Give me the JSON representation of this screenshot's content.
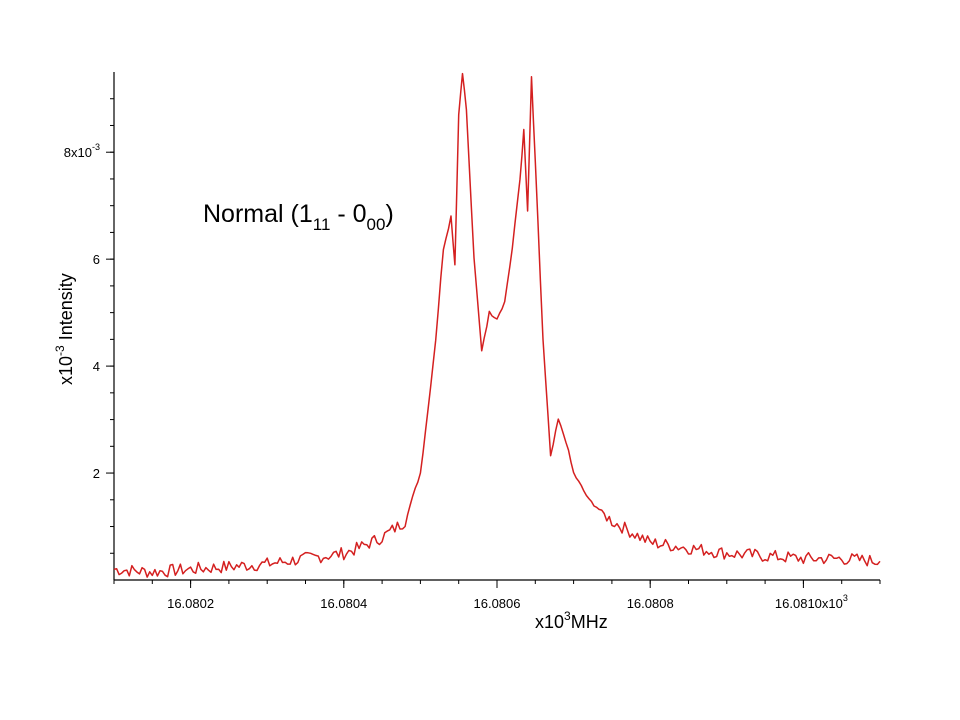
{
  "chart_data": {
    "type": "line",
    "title": "",
    "annotation": {
      "main": "Normal (1",
      "sub1": "11",
      "mid": " - 0",
      "sub2": "00",
      "end": ")"
    },
    "xlabel": {
      "prefix": "x10",
      "exp": "3",
      "unit": "MHz"
    },
    "ylabel": {
      "prefix": "x10",
      "exp": "-3",
      "unit": " Intensity"
    },
    "xlim": [
      16.0801,
      16.0811
    ],
    "ylim": [
      0,
      0.0095
    ],
    "grid": false,
    "x_ticks": [
      {
        "value": 16.0802,
        "label": "16.0802"
      },
      {
        "value": 16.0804,
        "label": "16.0804"
      },
      {
        "value": 16.0806,
        "label": "16.0806"
      },
      {
        "value": 16.0808,
        "label": "16.0808"
      },
      {
        "value": 16.081,
        "label": "16.0810x10",
        "sup": "3"
      }
    ],
    "y_ticks": [
      {
        "value": 0.002,
        "label": "2"
      },
      {
        "value": 0.004,
        "label": "4"
      },
      {
        "value": 0.006,
        "label": "6"
      },
      {
        "value": 0.008,
        "label": "8x10",
        "sup": "-3"
      }
    ],
    "color": "#d42020",
    "series": [
      {
        "x": [
          16.0801,
          16.08015,
          16.0802,
          16.08025,
          16.0803,
          16.08035,
          16.0804,
          16.08042,
          16.08045,
          16.08048,
          16.0805,
          16.08051,
          16.08052,
          16.08053,
          16.08054,
          16.080545,
          16.08055,
          16.080555,
          16.08056,
          16.08057,
          16.08058,
          16.08059,
          16.0806,
          16.08061,
          16.08062,
          16.08063,
          16.080635,
          16.08064,
          16.080645,
          16.08065,
          16.08066,
          16.08067,
          16.08068,
          16.08069,
          16.0807,
          16.08072,
          16.08075,
          16.0808,
          16.08085,
          16.0809,
          16.08095,
          16.081,
          16.08105,
          16.0811
        ],
        "y": [
          0.0002,
          0.00015,
          0.0002,
          0.00025,
          0.0003,
          0.0004,
          0.0005,
          0.0006,
          0.0008,
          0.0011,
          0.002,
          0.0032,
          0.0045,
          0.0062,
          0.0068,
          0.0059,
          0.0087,
          0.0095,
          0.0088,
          0.006,
          0.0043,
          0.005,
          0.0049,
          0.0052,
          0.0062,
          0.0075,
          0.0084,
          0.0069,
          0.0094,
          0.0078,
          0.0045,
          0.0023,
          0.003,
          0.0026,
          0.002,
          0.0015,
          0.0011,
          0.0007,
          0.0006,
          0.0005,
          0.00045,
          0.0004,
          0.0004,
          0.00035
        ]
      }
    ]
  }
}
